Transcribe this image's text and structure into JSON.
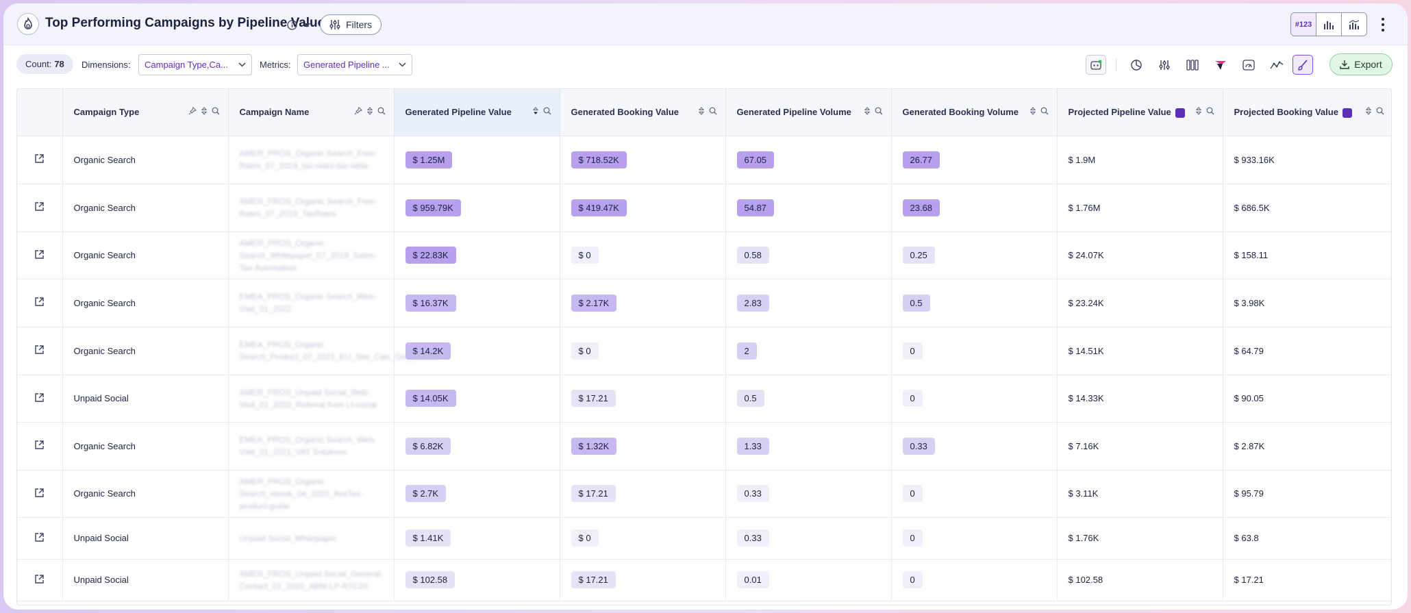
{
  "header": {
    "title": "Top Performing Campaigns by Pipeline Value",
    "filters_label": "Filters",
    "view_number_label": "#123"
  },
  "toolbar": {
    "count_label": "Count:",
    "count_value": "78",
    "dimensions_label": "Dimensions:",
    "dimensions_value": "Campaign Type,Ca...",
    "metrics_label": "Metrics:",
    "metrics_value": "Generated Pipeline ...",
    "export_label": "Export"
  },
  "colors": {
    "accent": "#5b2fb8",
    "chip_levels": [
      "#f1f0fa",
      "#e6e3f7",
      "#d8d0f4",
      "#c7b8f1",
      "#b7a1ee"
    ],
    "export_bg": "#e2f6e6"
  },
  "table": {
    "columns": [
      {
        "label": "Campaign Type"
      },
      {
        "label": "Campaign Name"
      },
      {
        "label": "Generated Pipeline Value"
      },
      {
        "label": "Generated Booking Value"
      },
      {
        "label": "Generated Pipeline Volume"
      },
      {
        "label": "Generated Booking Volume"
      },
      {
        "label": "Projected Pipeline Value"
      },
      {
        "label": "Projected Booking Value"
      }
    ],
    "rows": [
      {
        "type": "Organic Search",
        "name": "AMER_PROS_Organic Search_Free-Rates_07_2019_tax-rates-tax-table",
        "gpv": "$ 1.25M",
        "gbv": "$ 718.52K",
        "gpvol": "67.05",
        "gbvol": "26.77",
        "ppv": "$ 1.9M",
        "pbv": "$ 933.16K",
        "lv": [
          4,
          4,
          4,
          4
        ]
      },
      {
        "type": "Organic Search",
        "name": "AMER_PROS_Organic Search_Free-Rates_07_2019_TaxRates",
        "gpv": "$ 959.79K",
        "gbv": "$ 419.47K",
        "gpvol": "54.87",
        "gbvol": "23.68",
        "ppv": "$ 1.76M",
        "pbv": "$ 686.5K",
        "lv": [
          4,
          4,
          4,
          4
        ]
      },
      {
        "type": "Organic Search",
        "name": "AMER_PROS_Organic Search_Whitepaper_07_2019_Sales-Tax-Automation",
        "gpv": "$ 22.83K",
        "gbv": "$ 0",
        "gpvol": "0.58",
        "gbvol": "0.25",
        "ppv": "$ 24.07K",
        "pbv": "$ 158.11",
        "lv": [
          4,
          0,
          1,
          1
        ]
      },
      {
        "type": "Organic Search",
        "name": "EMEA_PROS_Organic Search_Web-Visit_01_2022",
        "gpv": "$ 16.37K",
        "gbv": "$ 2.17K",
        "gpvol": "2.83",
        "gbvol": "0.5",
        "ppv": "$ 23.24K",
        "pbv": "$ 3.98K",
        "lv": [
          3,
          3,
          2,
          2
        ]
      },
      {
        "type": "Organic Search",
        "name": "EMEA_PROS_Organic Search_Product_07_2021_EU_Site_Calc_Get_Started",
        "gpv": "$ 14.2K",
        "gbv": "$ 0",
        "gpvol": "2",
        "gbvol": "0",
        "ppv": "$ 14.51K",
        "pbv": "$ 64.79",
        "lv": [
          3,
          0,
          2,
          0
        ]
      },
      {
        "type": "Unpaid Social",
        "name": "AMER_PROS_Unpaid Social_Web-Visit_01_2020_Referral from LI-social",
        "gpv": "$ 14.05K",
        "gbv": "$ 17.21",
        "gpvol": "0.5",
        "gbvol": "0",
        "ppv": "$ 14.33K",
        "pbv": "$ 90.05",
        "lv": [
          3,
          1,
          1,
          0
        ]
      },
      {
        "type": "Organic Search",
        "name": "EMEA_PROS_Organic Search_Web-Visit_01_2021_VAT Solutions",
        "gpv": "$ 6.82K",
        "gbv": "$ 1.32K",
        "gpvol": "1.33",
        "gbvol": "0.33",
        "ppv": "$ 7.16K",
        "pbv": "$ 2.87K",
        "lv": [
          2,
          3,
          2,
          2
        ]
      },
      {
        "type": "Organic Search",
        "name": "AMER_PROS_Organic Search_ebook_04_2020_AvaTax-product-guide",
        "gpv": "$ 2.7K",
        "gbv": "$ 17.21",
        "gpvol": "0.33",
        "gbvol": "0",
        "ppv": "$ 3.11K",
        "pbv": "$ 95.79",
        "lv": [
          2,
          1,
          0,
          0
        ]
      },
      {
        "type": "Unpaid Social",
        "name": "Unpaid Social_Whitepaper",
        "gpv": "$ 1.41K",
        "gbv": "$ 0",
        "gpvol": "0.33",
        "gbvol": "0",
        "ppv": "$ 1.76K",
        "pbv": "$ 63.8",
        "lv": [
          1,
          0,
          0,
          0
        ]
      },
      {
        "type": "Unpaid Social",
        "name": "AMER_PROS_Unpaid Social_General-Contact_01_2020_ABM-LP-RTC20",
        "gpv": "$ 102.58",
        "gbv": "$ 17.21",
        "gpvol": "0.01",
        "gbvol": "0",
        "ppv": "$ 102.58",
        "pbv": "$ 17.21",
        "lv": [
          1,
          1,
          0,
          0
        ]
      }
    ]
  }
}
